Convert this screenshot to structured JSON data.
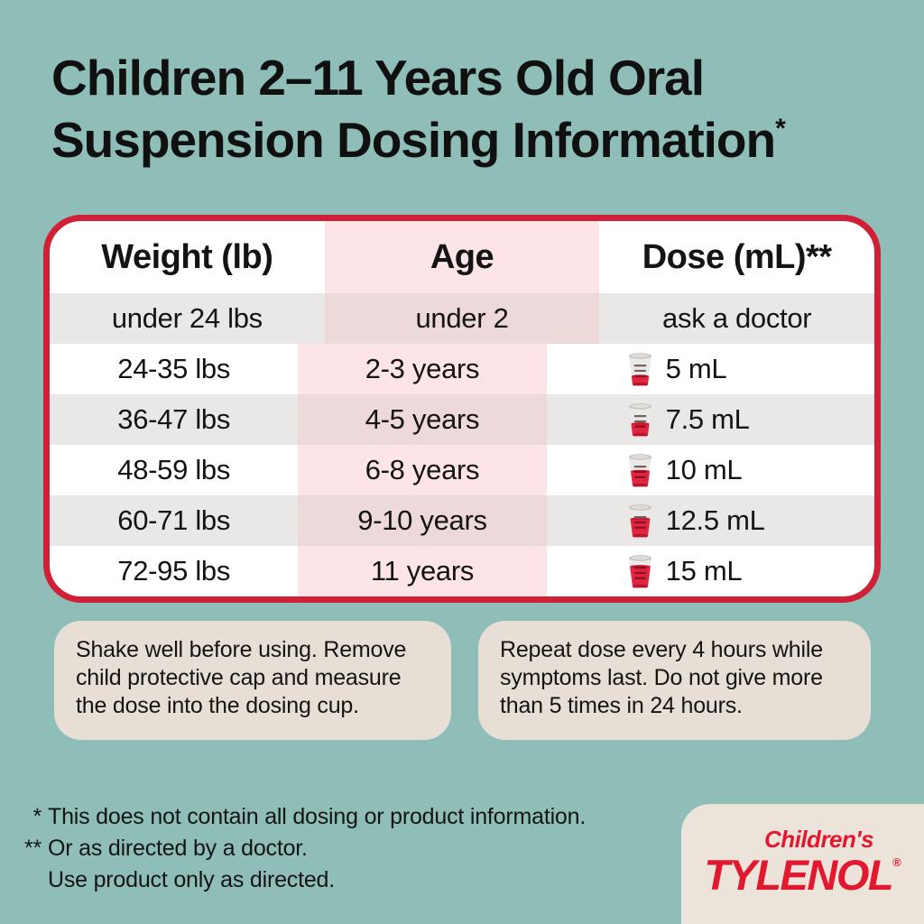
{
  "title": {
    "line1": "Children 2–11 Years Old Oral",
    "line2": "Suspension Dosing Information",
    "footnote_marker": "*"
  },
  "table": {
    "headers": [
      {
        "label": "Weight (lb)"
      },
      {
        "label": "Age"
      },
      {
        "label": "Dose (mL)**"
      }
    ],
    "rows": [
      {
        "weight": "under 24 lbs",
        "age": "under 2",
        "dose": "ask a doctor",
        "dose_ml": null
      },
      {
        "weight": "24-35 lbs",
        "age": "2-3 years",
        "dose": "5 mL",
        "dose_ml": 5
      },
      {
        "weight": "36-47 lbs",
        "age": "4-5 years",
        "dose": "7.5 mL",
        "dose_ml": 7.5
      },
      {
        "weight": "48-59 lbs",
        "age": "6-8 years",
        "dose": "10 mL",
        "dose_ml": 10
      },
      {
        "weight": "60-71 lbs",
        "age": "9-10 years",
        "dose": "12.5 mL",
        "dose_ml": 12.5
      },
      {
        "weight": "72-95 lbs",
        "age": "11 years",
        "dose": "15 mL",
        "dose_ml": 15
      }
    ]
  },
  "notes": [
    {
      "text": "Shake well before using. Remove child protective cap and measure the dose into the dosing cup."
    },
    {
      "text": "Repeat dose every 4 hours while symptoms last. Do not give more than 5 times in 24 hours."
    }
  ],
  "footnotes": [
    {
      "marker": "*",
      "text": "This does not contain all dosing or product information."
    },
    {
      "marker": "**",
      "text": "Or as directed by a doctor."
    },
    {
      "marker": "",
      "text": "Use product only as directed."
    }
  ],
  "logo": {
    "brand_top": "Children's",
    "brand_main": "TYLENOL",
    "registered": "®"
  },
  "icons": {
    "dose_cup": "dosing-cup-icon"
  },
  "colors": {
    "teal_background": "#8fbeb9",
    "brand_red": "#d02037",
    "logo_red": "#e2182f",
    "table_pink": "#fce4e7",
    "table_pink_shaded": "#eed9da",
    "row_stripe_gray": "#e9e8e6",
    "note_beige": "#e7dfd5",
    "card_beige": "#ece4da",
    "text_dark": "#141414",
    "liquid_red": "#e02540"
  }
}
